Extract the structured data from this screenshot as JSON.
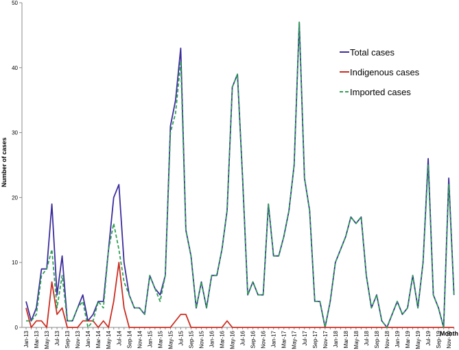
{
  "chart_data": {
    "type": "line",
    "title": "",
    "xlabel": "Month",
    "ylabel": "Number of cases",
    "ylim": [
      0,
      50
    ],
    "yticks": [
      0,
      10,
      20,
      30,
      40,
      50
    ],
    "grid": false,
    "legend_position": "top-right",
    "x_tick_labels": [
      "Jan-13",
      "Mar-13",
      "May-13",
      "Jul-13",
      "Sep-13",
      "Nov-13",
      "Jan-14",
      "Mar-14",
      "May-14",
      "Jul-14",
      "Sep-14",
      "Nov-14",
      "Jan-15",
      "Mar-15",
      "May-15",
      "Jul-15",
      "Sep-15",
      "Nov-15",
      "Jan-16",
      "Mar-16",
      "May-16",
      "Jul-16",
      "Sep-16",
      "Nov-16",
      "Jan-17",
      "Mar-17",
      "May-17",
      "Jul-17",
      "Sep-17",
      "Nov-17",
      "Jan-18",
      "Mar-18",
      "May-18",
      "Jul-18",
      "Sep-18",
      "Nov-18",
      "Jan-19",
      "Mar-19",
      "May-19",
      "Jul-19",
      "Sep-19",
      "Nov-19"
    ],
    "series": [
      {
        "name": "Total cases",
        "color": "#3b2d9b",
        "dash": "solid",
        "values": [
          4,
          1,
          3,
          9,
          9,
          19,
          5,
          11,
          1,
          1,
          3,
          5,
          1,
          2,
          4,
          4,
          12,
          20,
          22,
          10,
          5,
          3,
          3,
          2,
          8,
          6,
          5,
          8,
          31,
          35,
          43,
          15,
          11,
          3,
          7,
          3,
          8,
          8,
          12,
          18,
          37,
          39,
          23,
          5,
          7,
          5,
          5,
          19,
          11,
          11,
          14,
          18,
          25,
          47,
          23,
          18,
          4,
          4,
          0,
          4,
          10,
          12,
          14,
          17,
          16,
          17,
          8,
          3,
          5,
          1,
          0,
          2,
          4,
          2,
          3,
          8,
          3,
          10,
          26,
          5,
          3,
          0,
          23,
          5
        ]
      },
      {
        "name": "Indigenous cases",
        "color": "#cc2b1f",
        "dash": "solid",
        "values": [
          3,
          0,
          1,
          1,
          0,
          7,
          2,
          3,
          0,
          0,
          0,
          1,
          1,
          1,
          0,
          1,
          0,
          4,
          10,
          3,
          0,
          0,
          0,
          0,
          0,
          0,
          0,
          0,
          0,
          1,
          2,
          2,
          0,
          0,
          0,
          0,
          0,
          0,
          0,
          1,
          0,
          0,
          0,
          0,
          0,
          0,
          0,
          0,
          0,
          0,
          0,
          0,
          0,
          0,
          0,
          0,
          0,
          0,
          0,
          0,
          0,
          0,
          0,
          0,
          0,
          0,
          0,
          0,
          0,
          0,
          0,
          0,
          0,
          0,
          0,
          0,
          0,
          0,
          0,
          0,
          0,
          0,
          0,
          0
        ]
      },
      {
        "name": "Imported cases",
        "color": "#2ea052",
        "dash": "dashed",
        "values": [
          1,
          1,
          2,
          8,
          9,
          12,
          3,
          8,
          1,
          1,
          3,
          4,
          0,
          1,
          4,
          3,
          12,
          16,
          12,
          7,
          5,
          3,
          3,
          2,
          8,
          6,
          4,
          8,
          30,
          33,
          41,
          15,
          11,
          3,
          7,
          3,
          8,
          8,
          12,
          18,
          37,
          39,
          23,
          5,
          7,
          5,
          5,
          19,
          11,
          11,
          14,
          18,
          25,
          47,
          23,
          18,
          4,
          4,
          0,
          4,
          10,
          12,
          14,
          17,
          16,
          17,
          8,
          3,
          5,
          1,
          0,
          2,
          4,
          2,
          3,
          8,
          3,
          10,
          25,
          5,
          3,
          0,
          22,
          5
        ]
      }
    ]
  }
}
